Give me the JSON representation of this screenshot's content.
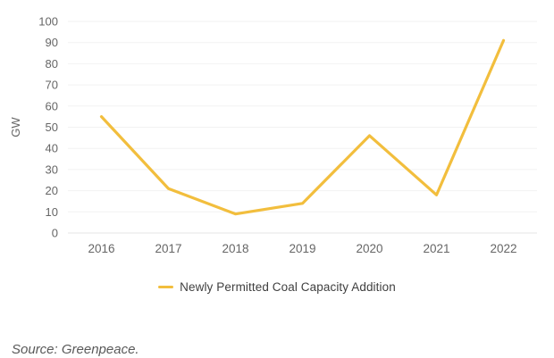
{
  "chart_data": {
    "type": "line",
    "categories": [
      "2016",
      "2017",
      "2018",
      "2019",
      "2020",
      "2021",
      "2022"
    ],
    "series": [
      {
        "name": "Newly Permitted Coal Capacity Addition",
        "values": [
          55,
          21,
          9,
          14,
          46,
          18,
          91
        ],
        "color": "#F2BE3D"
      }
    ],
    "title": "",
    "xlabel": "",
    "ylabel": "GW",
    "ylim": [
      0,
      100
    ],
    "ytick_step": 10,
    "grid": true,
    "legend_position": "bottom"
  },
  "legend": {
    "label": "Newly Permitted Coal Capacity Addition"
  },
  "source": {
    "text": "Source: Greenpeace."
  },
  "colors": {
    "line": "#F2BE3D",
    "gridline": "#f2f2f2",
    "zero_line": "#e6e6e6",
    "tick_label": "#666666",
    "axis_title": "#666666",
    "legend_text": "#3f3f3f",
    "source_text": "#595959",
    "background": "#ffffff"
  }
}
